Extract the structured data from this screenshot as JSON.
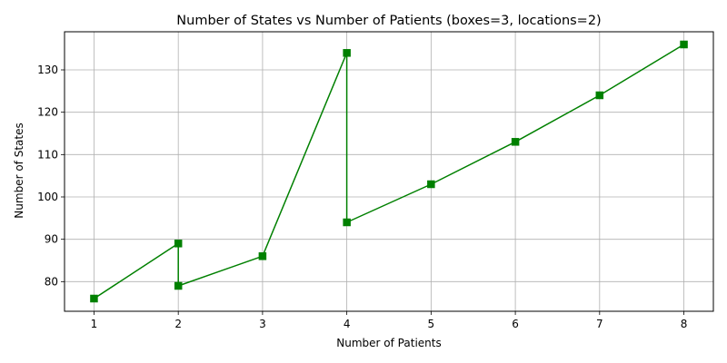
{
  "chart_data": {
    "type": "line",
    "title": "Number of States vs Number of Patients (boxes=3, locations=2)",
    "xlabel": "Number of Patients",
    "ylabel": "Number of States",
    "xlim": [
      0.65,
      8.35
    ],
    "ylim": [
      73,
      139
    ],
    "xticks": [
      1,
      2,
      3,
      4,
      5,
      6,
      7,
      8
    ],
    "yticks": [
      80,
      90,
      100,
      110,
      120,
      130
    ],
    "grid": true,
    "legend": "none",
    "marker": "square",
    "color": "#008000",
    "series": [
      {
        "x": [
          1,
          2,
          2,
          3,
          4,
          4,
          5,
          6,
          7,
          8
        ],
        "y": [
          76,
          89,
          79,
          86,
          134,
          94,
          103,
          113,
          124,
          136
        ]
      }
    ]
  }
}
